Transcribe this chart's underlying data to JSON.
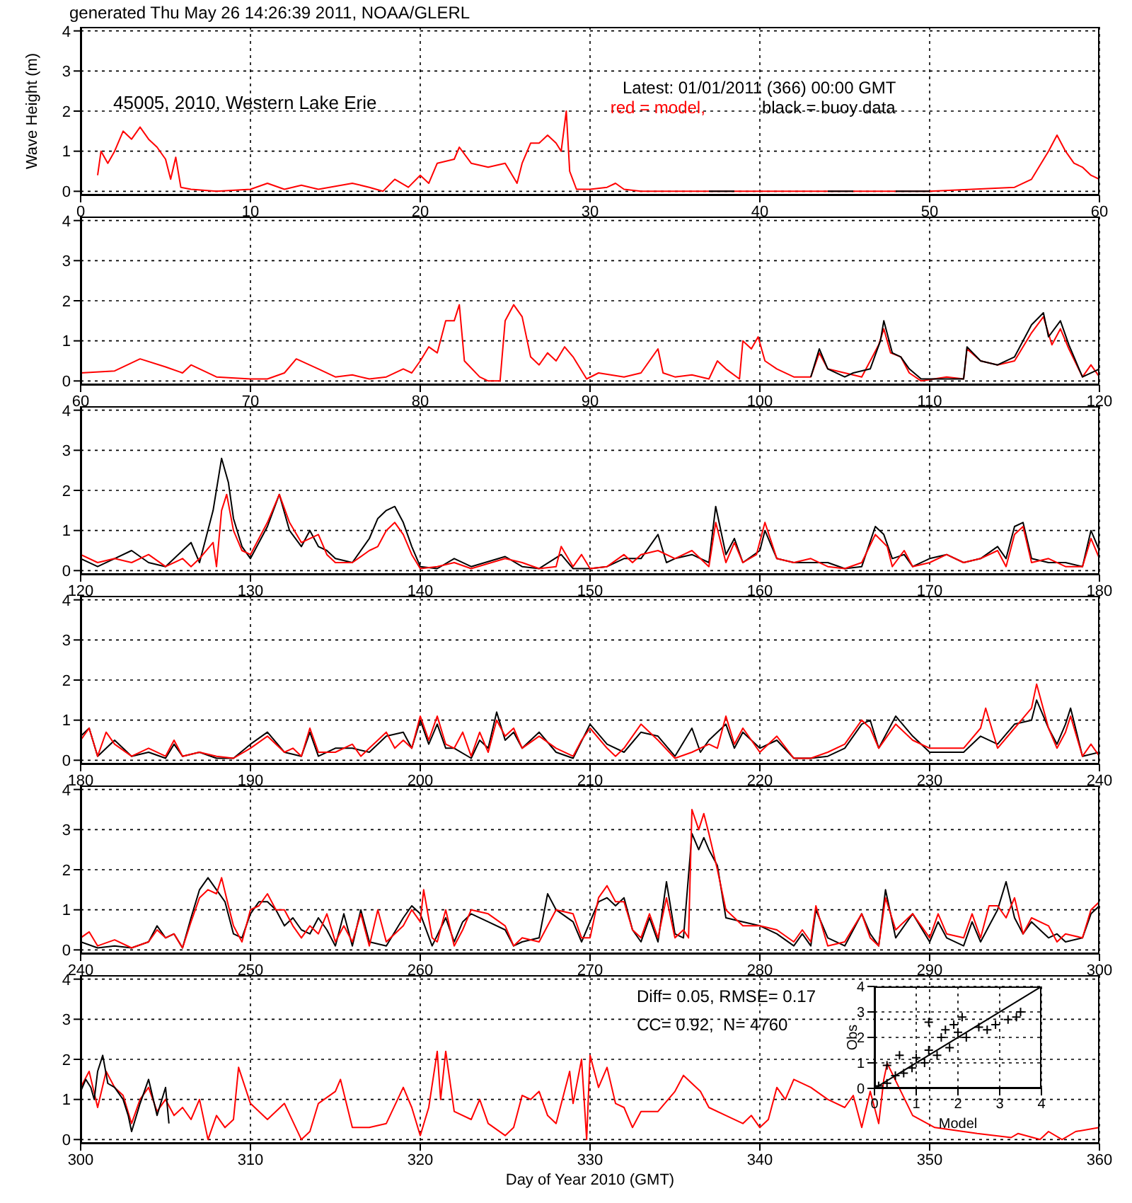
{
  "chart_data": [
    {
      "type": "line",
      "title": "generated Thu May 26 14:26:39 2011, NOAA/GLERL",
      "ylabel": "Wave Height (m)",
      "annotations": [
        "45005, 2010, Western Lake Erie",
        "Latest: 01/01/2011 (366) 00:00 GMT"
      ],
      "legend": "top right",
      "grid": true,
      "line_style": "solid",
      "xlim": [
        0,
        60
      ],
      "xticks": [
        0,
        10,
        20,
        30,
        40,
        50,
        60
      ],
      "ylim": [
        -0.1,
        4.1
      ],
      "yticks": [
        0,
        1,
        2,
        3,
        4
      ],
      "series": [
        {
          "name": "red = model,",
          "color": "#ff0000",
          "x": [
            1,
            1.2,
            1.6,
            2,
            2.5,
            3,
            3.5,
            4,
            4.5,
            5,
            5.3,
            5.6,
            5.9,
            6.5,
            8,
            10,
            11,
            12,
            13,
            14,
            16,
            17,
            17.8,
            18.5,
            19.3,
            20,
            20.5,
            21,
            22,
            22.3,
            23,
            24,
            25,
            25.7,
            26,
            26.5,
            27,
            27.5,
            28,
            28.3,
            28.6,
            28.8,
            29.2,
            30,
            31,
            31.5,
            32,
            33,
            40,
            50,
            55,
            56,
            57,
            57.5,
            58,
            58.5,
            59,
            59.5,
            60
          ],
          "values": [
            0.4,
            1.0,
            0.7,
            1.0,
            1.5,
            1.3,
            1.6,
            1.3,
            1.1,
            0.8,
            0.3,
            0.85,
            0.1,
            0.05,
            0,
            0.05,
            0.2,
            0.05,
            0.15,
            0.05,
            0.2,
            0.1,
            0,
            0.3,
            0.1,
            0.4,
            0.2,
            0.7,
            0.8,
            1.1,
            0.7,
            0.6,
            0.7,
            0.2,
            0.7,
            1.2,
            1.2,
            1.4,
            1.2,
            1.0,
            2.0,
            0.5,
            0.05,
            0.05,
            0.1,
            0.2,
            0.05,
            0,
            0,
            0,
            0.1,
            0.3,
            1.0,
            1.4,
            1.0,
            0.7,
            0.6,
            0.4,
            0.3
          ]
        },
        {
          "name": "black = buoy data",
          "color": "#000000",
          "x": [
            37,
            38.5,
            39,
            44,
            45.5,
            46,
            48,
            50
          ],
          "values": [
            0,
            0,
            null,
            0,
            0,
            null,
            0,
            0
          ]
        }
      ]
    },
    {
      "type": "line",
      "grid": true,
      "line_style": "solid",
      "xlim": [
        60,
        120
      ],
      "xticks": [
        60,
        70,
        80,
        90,
        100,
        110,
        120
      ],
      "ylim": [
        -0.1,
        4.1
      ],
      "yticks": [
        0,
        1,
        2,
        3,
        4
      ],
      "series": [
        {
          "color": "#ff0000",
          "x": [
            60,
            62,
            63.5,
            65,
            66,
            66.5,
            68,
            70,
            71,
            72,
            72.7,
            74,
            75,
            76,
            77,
            78,
            79,
            79.5,
            80,
            80.5,
            81,
            81.5,
            82,
            82.3,
            82.6,
            83.5,
            84,
            84.7,
            85,
            85.5,
            86,
            86.5,
            87,
            87.5,
            88,
            88.5,
            89,
            89.8,
            90.5,
            92,
            93,
            94,
            94.3,
            95,
            96,
            97,
            97.5,
            98,
            98.8,
            99,
            99.5,
            99.9,
            100.3,
            101,
            102,
            103,
            103.5,
            104,
            105,
            106,
            107,
            107.3,
            107.7,
            108.3,
            108.8,
            109.5,
            111,
            112,
            112.2,
            113,
            114,
            115,
            116,
            116.7,
            117.2,
            117.7,
            118.2,
            119,
            119.5,
            120
          ],
          "values": [
            0.2,
            0.25,
            0.55,
            0.35,
            0.2,
            0.4,
            0.1,
            0.05,
            0.05,
            0.2,
            0.55,
            0.3,
            0.1,
            0.15,
            0.05,
            0.1,
            0.3,
            0.2,
            0.5,
            0.85,
            0.7,
            1.5,
            1.5,
            1.9,
            0.5,
            0.1,
            0,
            0,
            1.5,
            1.9,
            1.6,
            0.6,
            0.4,
            0.7,
            0.5,
            0.85,
            0.6,
            0.05,
            0.2,
            0.1,
            0.2,
            0.8,
            0.2,
            0.1,
            0.15,
            0.05,
            0.5,
            0.3,
            0.05,
            1.0,
            0.8,
            1.1,
            0.5,
            0.3,
            0.1,
            0.1,
            0.7,
            0.3,
            0.2,
            0.1,
            0.9,
            1.3,
            0.7,
            0.6,
            0.2,
            0,
            0.1,
            0.05,
            0.8,
            0.5,
            0.4,
            0.5,
            1.2,
            1.6,
            0.9,
            1.3,
            0.8,
            0.1,
            0.4,
            0.1
          ]
        },
        {
          "color": "#000000",
          "x": [
            103,
            103.5,
            104,
            105,
            105.5,
            106.5,
            107.1,
            107.3,
            107.8,
            108.3,
            108.8,
            109.5,
            111,
            112,
            112.2,
            113,
            114,
            115,
            116,
            116.7,
            117,
            117.7,
            118.2,
            119,
            120
          ],
          "values": [
            0.1,
            0.8,
            0.3,
            0.1,
            0.2,
            0.3,
            1.0,
            1.5,
            0.7,
            0.6,
            0.3,
            0.05,
            0.05,
            0.05,
            0.85,
            0.5,
            0.4,
            0.6,
            1.4,
            1.7,
            1.1,
            1.5,
            0.9,
            0.1,
            0.3
          ]
        }
      ]
    },
    {
      "type": "line",
      "grid": true,
      "line_style": "solid",
      "xlim": [
        120,
        180
      ],
      "xticks": [
        120,
        130,
        140,
        150,
        160,
        170,
        180
      ],
      "ylim": [
        -0.1,
        4.1
      ],
      "yticks": [
        0,
        1,
        2,
        3,
        4
      ],
      "series": [
        {
          "color": "#000000",
          "x": [
            120,
            121,
            122,
            123,
            124,
            125,
            126,
            126.5,
            127,
            127.8,
            128.3,
            128.7,
            129,
            129.5,
            130,
            131,
            131.7,
            132.3,
            133,
            133.5,
            134,
            134.5,
            135,
            136,
            137,
            137.5,
            138,
            138.5,
            139,
            139.5,
            140,
            141,
            142,
            143,
            145,
            146,
            147,
            148.3,
            149,
            150,
            151,
            152,
            153,
            154,
            154.5,
            155,
            156,
            157,
            157.4,
            158,
            158.5,
            159,
            160,
            160.3,
            161,
            162,
            163,
            164,
            165,
            166,
            166.8,
            167.3,
            167.8,
            168.5,
            169,
            170,
            171,
            172,
            173,
            174,
            174.5,
            175,
            175.5,
            176,
            177,
            178,
            179,
            179.5,
            180
          ],
          "values": [
            0.3,
            0.1,
            0.3,
            0.5,
            0.2,
            0.1,
            0.5,
            0.7,
            0.2,
            1.5,
            2.8,
            2.2,
            1.3,
            0.6,
            0.3,
            1.1,
            1.9,
            1.0,
            0.6,
            1.0,
            0.6,
            0.5,
            0.3,
            0.2,
            0.8,
            1.3,
            1.5,
            1.6,
            1.2,
            0.6,
            0.1,
            0.05,
            0.3,
            0.1,
            0.35,
            0.1,
            0.05,
            0.4,
            0.05,
            0.05,
            0.1,
            0.3,
            0.3,
            0.9,
            0.2,
            0.3,
            0.4,
            0.2,
            1.6,
            0.4,
            0.8,
            0.2,
            0.5,
            1.0,
            0.3,
            0.2,
            0.2,
            0.2,
            0.05,
            0.1,
            1.1,
            0.9,
            0.3,
            0.4,
            0.1,
            0.3,
            0.4,
            0.2,
            0.3,
            0.6,
            0.3,
            1.1,
            1.2,
            0.3,
            0.2,
            0.2,
            0.1,
            1.0,
            0.5
          ]
        },
        {
          "color": "#ff0000",
          "x": [
            120,
            121,
            122,
            123,
            124,
            125,
            126,
            126.5,
            127,
            127.8,
            128,
            128.3,
            128.6,
            129,
            129.5,
            130,
            131,
            131.7,
            132.3,
            133,
            134,
            134.5,
            135,
            136,
            137,
            137.5,
            138,
            138.5,
            139,
            139.5,
            140,
            141,
            142,
            143,
            145,
            146,
            147,
            148,
            148.3,
            149,
            149.5,
            150,
            151,
            152,
            152.5,
            153,
            154,
            155,
            156,
            157,
            157.4,
            158,
            158.5,
            159,
            159.8,
            160.3,
            161,
            162,
            163,
            164,
            165,
            166,
            166.8,
            167.5,
            167.8,
            168.5,
            169,
            170,
            171,
            172,
            173,
            174,
            174.5,
            175,
            175.5,
            176,
            177,
            178,
            179,
            179.5,
            180
          ],
          "values": [
            0.4,
            0.2,
            0.3,
            0.2,
            0.4,
            0.1,
            0.3,
            0.1,
            0.3,
            0.7,
            0.1,
            1.5,
            1.9,
            1.0,
            0.5,
            0.4,
            1.2,
            1.9,
            1.2,
            0.7,
            0.9,
            0.4,
            0.2,
            0.2,
            0.5,
            0.6,
            1.0,
            1.2,
            0.9,
            0.4,
            0.05,
            0.1,
            0.2,
            0.05,
            0.3,
            0.2,
            0.05,
            0.1,
            0.6,
            0.1,
            0.4,
            0.05,
            0.1,
            0.4,
            0.2,
            0.4,
            0.5,
            0.3,
            0.5,
            0.1,
            1.2,
            0.2,
            0.7,
            0.2,
            0.4,
            1.2,
            0.3,
            0.2,
            0.3,
            0.1,
            0.05,
            0.2,
            0.9,
            0.6,
            0.1,
            0.5,
            0.1,
            0.2,
            0.4,
            0.2,
            0.3,
            0.5,
            0.1,
            0.9,
            1.1,
            0.2,
            0.3,
            0.1,
            0.1,
            0.8,
            0.3
          ]
        }
      ]
    },
    {
      "type": "line",
      "grid": true,
      "line_style": "solid",
      "xlim": [
        180,
        240
      ],
      "xticks": [
        180,
        190,
        200,
        210,
        220,
        230,
        240
      ],
      "ylim": [
        -0.1,
        4.1
      ],
      "yticks": [
        0,
        1,
        2,
        3,
        4
      ],
      "series": [
        {
          "color": "#000000",
          "x": [
            180,
            180.5,
            181,
            182,
            183,
            184,
            185,
            185.5,
            186,
            187,
            188,
            189,
            190,
            191,
            192,
            193,
            193.5,
            194,
            195,
            196,
            197,
            198,
            199,
            199.5,
            200,
            200.5,
            201,
            201.5,
            202,
            203,
            203.5,
            204,
            204.5,
            205,
            205.5,
            206,
            207,
            208,
            209,
            210,
            211,
            212,
            213,
            214,
            215,
            216,
            216.5,
            217,
            218,
            218.5,
            219,
            220,
            221,
            222,
            223,
            224,
            225,
            226,
            226.5,
            227,
            228,
            229,
            230,
            231,
            232,
            233,
            234,
            235,
            236,
            236.3,
            237,
            237.5,
            238,
            238.3,
            239,
            240
          ],
          "values": [
            0.6,
            0.8,
            0.1,
            0.5,
            0.1,
            0.2,
            0.05,
            0.4,
            0.1,
            0.2,
            0.05,
            0.05,
            0.4,
            0.7,
            0.2,
            0.1,
            0.7,
            0.1,
            0.3,
            0.3,
            0.2,
            0.6,
            0.7,
            0.3,
            1.0,
            0.4,
            0.9,
            0.3,
            0.3,
            0.05,
            0.5,
            0.3,
            1.2,
            0.5,
            0.7,
            0.3,
            0.7,
            0.2,
            0.05,
            0.9,
            0.4,
            0.2,
            0.7,
            0.6,
            0.1,
            0.8,
            0.2,
            0.5,
            0.9,
            0.3,
            0.7,
            0.3,
            0.5,
            0.05,
            0.05,
            0.1,
            0.3,
            0.9,
            1.0,
            0.3,
            1.1,
            0.6,
            0.2,
            0.2,
            0.2,
            0.6,
            0.4,
            0.9,
            1.0,
            1.5,
            0.8,
            0.4,
            0.9,
            1.3,
            0.1,
            0.2
          ]
        },
        {
          "color": "#ff0000",
          "x": [
            180,
            180.5,
            181,
            181.5,
            182,
            183,
            184,
            185,
            185.5,
            186,
            187,
            188,
            189,
            190,
            191,
            192,
            192.5,
            193,
            193.5,
            194,
            195,
            196,
            196.5,
            197,
            198,
            198.5,
            199,
            199.5,
            200,
            200.5,
            201,
            201.5,
            202,
            202.5,
            203,
            203.5,
            204,
            204.5,
            205,
            205.5,
            206,
            207,
            208,
            209,
            209.5,
            210,
            211,
            211.5,
            212,
            213,
            214,
            215,
            216,
            217,
            217.5,
            218,
            218.5,
            219,
            220,
            221,
            222,
            223,
            224,
            225,
            226,
            226.5,
            227,
            228,
            229,
            230,
            231,
            232,
            233,
            233.3,
            234,
            235,
            236,
            236.3,
            237,
            237.5,
            238,
            238.3,
            239,
            239.5,
            240
          ],
          "values": [
            0.5,
            0.8,
            0.1,
            0.7,
            0.4,
            0.1,
            0.3,
            0.1,
            0.5,
            0.1,
            0.2,
            0.1,
            0.05,
            0.3,
            0.6,
            0.2,
            0.3,
            0.1,
            0.8,
            0.2,
            0.2,
            0.4,
            0.1,
            0.3,
            0.7,
            0.3,
            0.5,
            0.3,
            1.1,
            0.5,
            1.1,
            0.4,
            0.3,
            0.7,
            0.1,
            0.7,
            0.2,
            1.0,
            0.6,
            0.8,
            0.3,
            0.6,
            0.3,
            0.1,
            0.5,
            0.8,
            0.3,
            0.1,
            0.3,
            0.9,
            0.5,
            0.05,
            0.2,
            0.4,
            0.3,
            1.1,
            0.4,
            0.8,
            0.2,
            0.6,
            0.05,
            0.05,
            0.2,
            0.4,
            1.0,
            0.8,
            0.3,
            0.9,
            0.5,
            0.3,
            0.3,
            0.3,
            0.8,
            1.3,
            0.3,
            0.8,
            1.3,
            1.9,
            0.8,
            0.3,
            0.7,
            1.1,
            0.1,
            0.4,
            0.1
          ]
        }
      ]
    },
    {
      "type": "line",
      "grid": true,
      "line_style": "solid",
      "xlim": [
        240,
        300
      ],
      "xticks": [
        240,
        250,
        260,
        270,
        280,
        290,
        300
      ],
      "ylim": [
        -0.1,
        4.1
      ],
      "yticks": [
        0,
        1,
        2,
        3,
        4
      ],
      "series": [
        {
          "color": "#000000",
          "x": [
            240,
            241,
            242,
            243,
            244,
            244.5,
            245,
            245.5,
            246,
            246.5,
            247,
            247.5,
            248,
            248.5,
            249,
            249.5,
            250,
            250.5,
            251,
            251.5,
            252,
            252.5,
            253,
            253.5,
            254,
            254.5,
            255,
            255.5,
            256,
            256.5,
            257,
            258,
            259,
            259.5,
            260,
            260.7,
            261.5,
            262,
            262.5,
            263,
            264,
            265,
            265.5,
            266,
            267,
            267.5,
            268,
            269,
            269.5,
            270.5,
            271,
            271.5,
            272,
            272.5,
            273,
            273.5,
            274,
            274.5,
            275,
            275.5,
            276,
            276.4,
            276.7,
            277,
            277.5,
            278,
            279,
            280,
            281,
            282,
            282.5,
            283,
            283.3,
            284,
            285,
            286,
            286.5,
            287,
            287.4,
            288,
            289,
            290,
            290.5,
            291,
            292,
            292.5,
            293,
            293.5,
            294,
            294.5,
            295,
            295.5,
            296,
            297,
            297.5,
            298,
            299,
            299.5,
            300
          ],
          "values": [
            0.2,
            0.05,
            0.1,
            0.05,
            0.2,
            0.6,
            0.3,
            0.4,
            0.05,
            0.8,
            1.5,
            1.8,
            1.5,
            1.2,
            0.4,
            0.3,
            0.9,
            1.2,
            1.2,
            1.0,
            0.6,
            0.8,
            0.5,
            0.4,
            0.8,
            0.5,
            0.1,
            0.9,
            0.1,
            1.0,
            0.2,
            0.1,
            0.8,
            1.1,
            0.9,
            0.1,
            0.8,
            0.2,
            0.7,
            0.9,
            0.7,
            0.5,
            0.1,
            0.2,
            0.3,
            1.4,
            1.0,
            0.7,
            0.2,
            1.2,
            1.3,
            1.1,
            1.3,
            0.5,
            0.2,
            0.8,
            0.2,
            1.7,
            0.4,
            0.3,
            2.9,
            2.5,
            2.8,
            2.5,
            2.1,
            0.8,
            0.7,
            0.6,
            0.4,
            0.1,
            0.4,
            0.1,
            1.0,
            0.3,
            0.1,
            0.9,
            0.4,
            0.1,
            1.5,
            0.3,
            0.9,
            0.2,
            0.7,
            0.3,
            0.1,
            0.7,
            0.2,
            0.6,
            1.0,
            1.7,
            0.8,
            0.4,
            0.7,
            0.3,
            0.4,
            0.2,
            0.3,
            0.9,
            1.1
          ]
        },
        {
          "color": "#ff0000",
          "x": [
            240,
            240.5,
            241,
            242,
            243,
            244,
            244.5,
            245,
            245.5,
            246,
            246.5,
            247,
            247.5,
            248,
            248.3,
            248.7,
            249,
            249.5,
            250,
            250.5,
            251,
            251.5,
            252,
            252.5,
            253,
            253.5,
            254,
            254.5,
            255,
            255.5,
            256,
            256.5,
            257,
            257.5,
            258,
            259,
            259.5,
            260,
            260.2,
            260.7,
            261,
            261.5,
            262,
            262.5,
            263,
            264,
            265,
            265.5,
            266,
            267,
            267.5,
            268,
            269,
            269.5,
            270,
            270.5,
            271,
            271.5,
            272,
            272.5,
            273,
            273.5,
            274,
            274.5,
            275,
            275.5,
            275.8,
            276,
            276.4,
            276.7,
            277,
            277.5,
            278,
            279,
            280,
            281,
            282,
            282.5,
            283,
            283.3,
            284,
            285,
            286,
            286.5,
            287,
            287.4,
            288,
            289,
            290,
            290.5,
            291,
            292,
            292.5,
            293,
            293.5,
            294,
            294.5,
            295,
            295.5,
            296,
            297,
            297.5,
            298,
            299,
            299.5,
            300
          ],
          "values": [
            0.3,
            0.45,
            0.1,
            0.25,
            0.05,
            0.2,
            0.5,
            0.3,
            0.4,
            0.05,
            0.7,
            1.3,
            1.5,
            1.4,
            1.8,
            1.1,
            0.6,
            0.2,
            1.0,
            1.1,
            1.4,
            1.0,
            1.0,
            0.6,
            0.3,
            0.6,
            0.4,
            0.9,
            0.2,
            0.6,
            0.2,
            0.9,
            0.1,
            1.0,
            0.2,
            0.6,
            1.0,
            0.7,
            1.5,
            0.3,
            0.2,
            1.0,
            0.1,
            0.5,
            1.0,
            0.9,
            0.6,
            0.1,
            0.3,
            0.2,
            0.6,
            1.0,
            0.9,
            0.3,
            0.3,
            1.3,
            1.6,
            1.2,
            1.2,
            0.5,
            0.3,
            0.9,
            0.3,
            1.3,
            0.3,
            0.5,
            0.3,
            3.5,
            3.0,
            3.4,
            2.9,
            2.0,
            1.0,
            0.6,
            0.6,
            0.5,
            0.2,
            0.5,
            0.2,
            1.1,
            0.1,
            0.2,
            0.9,
            0.3,
            0.1,
            1.3,
            0.5,
            0.9,
            0.3,
            0.9,
            0.4,
            0.3,
            0.9,
            0.3,
            1.1,
            1.1,
            0.8,
            1.3,
            0.4,
            0.8,
            0.6,
            0.2,
            0.4,
            0.3,
            1.0,
            1.2
          ]
        }
      ]
    },
    {
      "type": "line",
      "xlabel": "Day of Year 2010 (GMT)",
      "annotations": [
        "Diff= 0.05, RMSE= 0.17",
        "CC= 0.92,  N= 4760"
      ],
      "grid": true,
      "line_style": "solid",
      "xlim": [
        300,
        360
      ],
      "xticks": [
        300,
        310,
        320,
        330,
        340,
        350,
        360
      ],
      "ylim": [
        -0.1,
        4.1
      ],
      "yticks": [
        0,
        1,
        2,
        3,
        4
      ],
      "series": [
        {
          "color": "#ff0000",
          "x": [
            300,
            300.5,
            301,
            301.5,
            302,
            302.5,
            303,
            303.5,
            304,
            304.5,
            305,
            305.5,
            306,
            306.5,
            307,
            307.5,
            308,
            308.5,
            309,
            309.3,
            310,
            311,
            312,
            313,
            313.5,
            314,
            315,
            315.3,
            316,
            317,
            318,
            319,
            319.5,
            320,
            320.5,
            321,
            321.2,
            321.5,
            322,
            323,
            323.5,
            324,
            325,
            325.5,
            326,
            326.5,
            327,
            327.5,
            328,
            328.8,
            329,
            329.5,
            329.8,
            330,
            330.5,
            331,
            331.5,
            332,
            332.5,
            333,
            334,
            335,
            335.5,
            336,
            336.5,
            337,
            338,
            339,
            339.5,
            340,
            340.5,
            341,
            341.5,
            342,
            343,
            344,
            345,
            345.5,
            346,
            346.5,
            347,
            347.3,
            347.5,
            349,
            350.3,
            352.8,
            354.8,
            355.2,
            356.5,
            357,
            357.8,
            358.6,
            360
          ],
          "values": [
            1.3,
            1.7,
            0.8,
            1.7,
            1.3,
            1.1,
            0.4,
            1.0,
            1.3,
            0.7,
            1.0,
            0.6,
            0.8,
            0.5,
            1.0,
            0,
            0.6,
            0.3,
            0.5,
            1.8,
            0.9,
            0.5,
            0.9,
            0,
            0.2,
            0.9,
            1.2,
            1.5,
            0.3,
            0.3,
            0.4,
            1.3,
            0.8,
            0.1,
            0.8,
            2.2,
            1.0,
            2.2,
            0.7,
            0.5,
            1.0,
            0.4,
            0.1,
            0.3,
            1.1,
            1.0,
            1.2,
            0.6,
            0.4,
            1.7,
            0.9,
            2.0,
            0,
            2.1,
            1.3,
            1.8,
            0.9,
            0.8,
            0.3,
            0.7,
            0.7,
            1.2,
            1.6,
            1.4,
            1.2,
            0.8,
            0.6,
            0.4,
            0.6,
            0.3,
            0.5,
            1.3,
            1.0,
            1.5,
            1.3,
            1.0,
            0.8,
            1.1,
            0.3,
            1.2,
            0.4,
            1.5,
            1.9,
            0.6,
            0.3,
            0.15,
            0.05,
            0.15,
            0,
            0.2,
            0,
            0.2,
            0.3
          ]
        },
        {
          "color": "#000000",
          "x": [
            300,
            300.3,
            300.6,
            300.8,
            301,
            301.3,
            301.6,
            302,
            302.5,
            302.8,
            303,
            303.5,
            304,
            304.5,
            305,
            305.2
          ],
          "values": [
            1.2,
            1.5,
            1.3,
            1.0,
            1.7,
            2.1,
            1.4,
            1.3,
            1.0,
            0.6,
            0.2,
            0.9,
            1.5,
            0.6,
            1.3,
            0.4
          ]
        }
      ]
    },
    {
      "type": "scatter",
      "xlabel": "Model",
      "ylabel": "Obs",
      "grid": true,
      "xlim": [
        0,
        4
      ],
      "xticks": [
        0,
        1,
        2,
        3,
        4
      ],
      "ylim": [
        0,
        4
      ],
      "yticks": [
        0,
        1,
        2,
        3,
        4
      ],
      "series": [
        {
          "marker": "cross",
          "color": "#000000",
          "x": [
            0.1,
            0.3,
            0.5,
            0.7,
            0.9,
            1.0,
            1.2,
            1.3,
            1.5,
            1.6,
            1.7,
            1.8,
            1.9,
            2.0,
            2.2,
            2.5,
            2.7,
            2.9,
            3.2,
            3.4,
            3.5,
            0.3,
            0.6,
            1.3,
            2.1
          ],
          "values": [
            0.1,
            0.2,
            0.5,
            0.6,
            0.8,
            1.2,
            1.0,
            1.5,
            1.3,
            2.0,
            2.3,
            1.6,
            2.5,
            2.2,
            2.0,
            2.4,
            2.3,
            2.5,
            2.7,
            2.8,
            3.0,
            0.9,
            1.3,
            2.6,
            2.8
          ]
        },
        {
          "type": "line",
          "line_style": "solid",
          "color": "#000000",
          "x": [
            0,
            4
          ],
          "values": [
            0,
            4
          ]
        }
      ]
    }
  ]
}
